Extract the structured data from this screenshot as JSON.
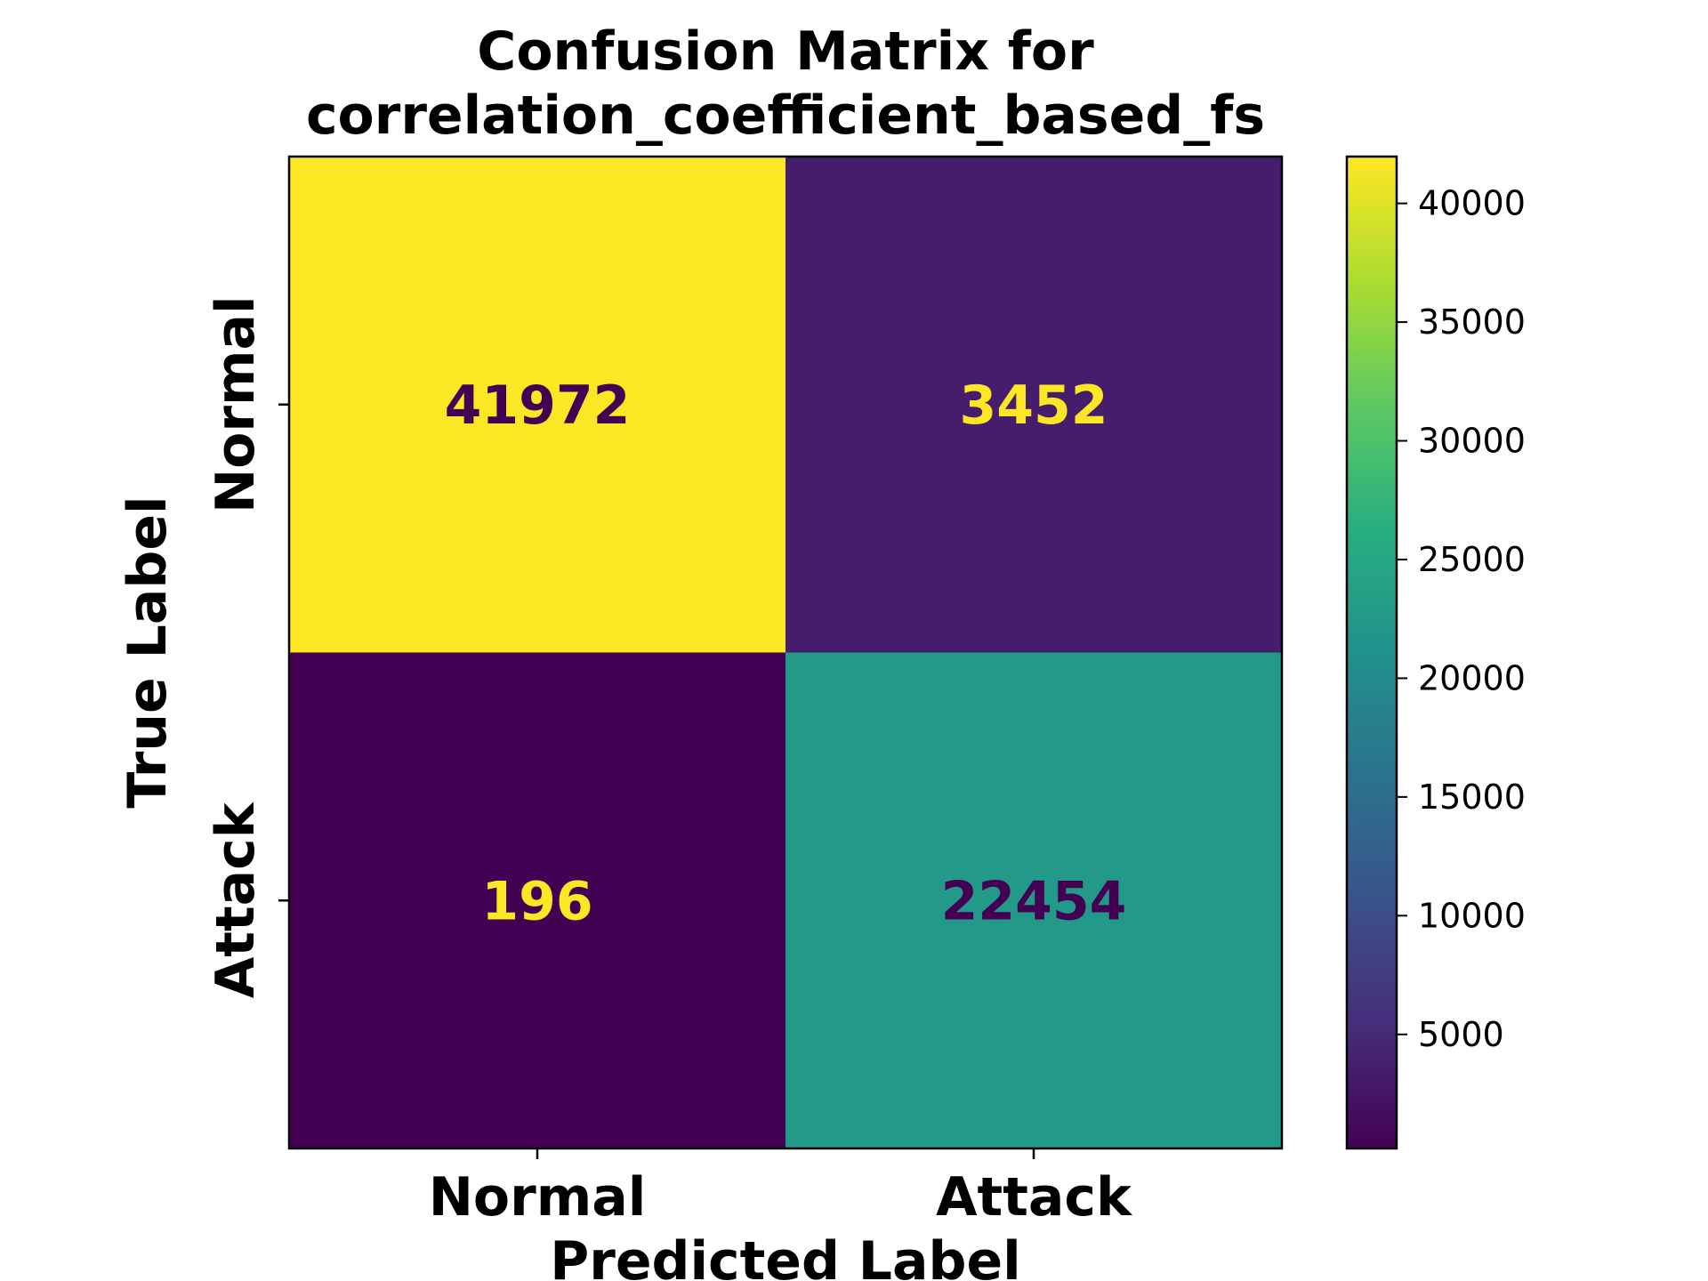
{
  "chart_data": {
    "type": "heatmap",
    "title_lines": [
      "Confusion Matrix for",
      "correlation_coefficient_based_fs"
    ],
    "xlabel": "Predicted Label",
    "ylabel": "True Label",
    "x_categories": [
      "Normal",
      "Attack"
    ],
    "y_categories": [
      "Normal",
      "Attack"
    ],
    "values": [
      [
        41972,
        3452
      ],
      [
        196,
        22454
      ]
    ],
    "colormap": "viridis",
    "colorbar": {
      "min": 196,
      "max": 41972,
      "ticks": [
        5000,
        10000,
        15000,
        20000,
        25000,
        30000,
        35000,
        40000
      ]
    },
    "colors": {
      "label_on_bright": "#440154",
      "label_on_dark": "#fde725"
    },
    "grid": false
  }
}
